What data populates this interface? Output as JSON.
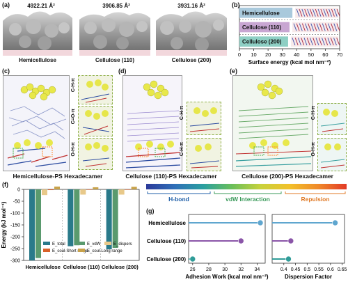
{
  "panel_a": {
    "label": "(a)",
    "areas": [
      "4922.21 Å²",
      "3906.85 Å²",
      "3931.16 Å²"
    ],
    "names": [
      "Hemicellulose",
      "Cellulose (110)",
      "Cellulose (200)"
    ]
  },
  "panel_b": {
    "label": "(b)"
  },
  "panel_c": {
    "label": "(c)",
    "caption": "Hemicellulose-PS Hexadecamer",
    "insets": [
      "C-H-π",
      "C=O-π",
      "O-H-π"
    ]
  },
  "panel_d": {
    "label": "(d)",
    "caption": "Cellulose (110)-PS Hexadecamer",
    "insets": [
      "C-H-π",
      "C-H-π"
    ]
  },
  "panel_e": {
    "label": "(e)",
    "caption": "Cellulose (200)-PS Hexadecamer",
    "insets": [
      "C-H-π",
      "O-H-π"
    ]
  },
  "panel_f": {
    "label": "(f)"
  },
  "panel_g": {
    "label": "(g)"
  },
  "colorbar": {
    "labels": [
      "H-bond",
      "vdW Interaction",
      "Repulsion"
    ]
  },
  "colors": {
    "hemi_bar": "#a9c9dc",
    "c110_bar": "#c8a6d2",
    "c200_bar": "#8ecfc4",
    "etotal": "#2a7a8a",
    "evdw": "#5a9a6e",
    "edispers": "#e8c98a",
    "ecoul_short": "#d9622a",
    "ecoul_long": "#c8a24a",
    "lollipop_hemi": "#5fa6cf",
    "lollipop_110": "#8a55a8",
    "lollipop_200": "#2f9c98"
  },
  "chart_data": [
    {
      "id": "b",
      "type": "bar",
      "orientation": "horizontal",
      "categories": [
        "Hemicellulose",
        "Cellulose (110)",
        "Cellulose (200)"
      ],
      "values": [
        37,
        35,
        34
      ],
      "xlabel": "Surface energy (kcal mol nm⁻²)",
      "xlim": [
        0,
        70
      ],
      "xticks": [
        0,
        10,
        20,
        30,
        40,
        50,
        60,
        70
      ]
    },
    {
      "id": "f",
      "type": "bar",
      "categories": [
        "Hemicellulose",
        "Cellulose (110)",
        "Cellulose (200)"
      ],
      "ylabel": "Energy (kJ mol⁻¹)",
      "ylim": [
        -300,
        0
      ],
      "yticks": [
        0,
        -50,
        -100,
        -150,
        -200,
        -250,
        -300
      ],
      "series": [
        {
          "name": "E_total",
          "values": [
            -300,
            -240,
            -253
          ]
        },
        {
          "name": "E_vdW",
          "values": [
            -290,
            -236,
            -247
          ]
        },
        {
          "name": "E_dispers",
          "values": [
            -24,
            -22,
            -22
          ]
        },
        {
          "name": "E_coul-Short range",
          "values": [
            -3,
            -2,
            -2
          ]
        },
        {
          "name": "E_coul-Long range",
          "values": [
            12,
            9,
            11
          ]
        }
      ]
    },
    {
      "id": "g-left",
      "type": "scatter",
      "style": "lollipop",
      "categories": [
        "Hemicellulose",
        "Cellulose (110)",
        "Cellulose (200)"
      ],
      "values": [
        34.4,
        32.0,
        26.0
      ],
      "xlabel": "Adhesion Work (kcal mol nm⁻²)",
      "xlim": [
        25.5,
        35
      ],
      "xticks": [
        26,
        28,
        30,
        32,
        34
      ]
    },
    {
      "id": "g-right",
      "type": "scatter",
      "style": "lollipop",
      "categories": [
        "Hemicellulose",
        "Cellulose (110)",
        "Cellulose (200)"
      ],
      "values": [
        0.62,
        0.43,
        0.42
      ],
      "xlabel": "Dispersion Factor",
      "xlim": [
        0.35,
        0.66
      ],
      "xticks": [
        0.4,
        0.45,
        0.5,
        0.55,
        0.6,
        0.65
      ]
    }
  ]
}
